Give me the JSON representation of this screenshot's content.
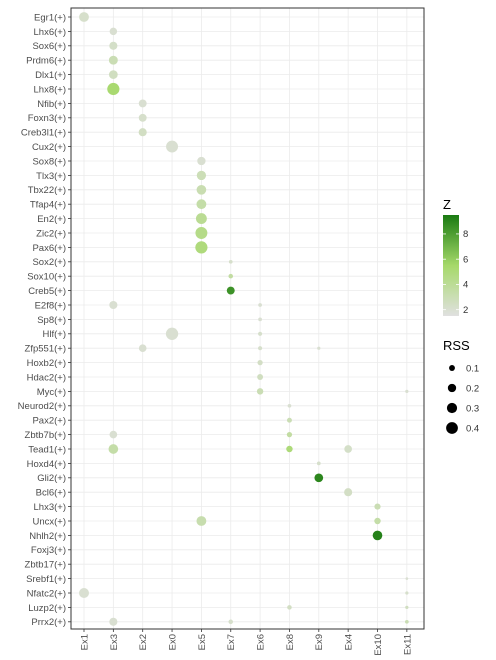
{
  "chart_data": {
    "type": "scatter",
    "xcategories": [
      "Ex1",
      "Ex3",
      "Ex2",
      "Ex0",
      "Ex5",
      "Ex7",
      "Ex6",
      "Ex8",
      "Ex9",
      "Ex4",
      "Ex10",
      "Ex11"
    ],
    "ycategories": [
      "Egr1(+)",
      "Lhx6(+)",
      "Sox6(+)",
      "Prdm6(+)",
      "Dlx1(+)",
      "Lhx8(+)",
      "Nfib(+)",
      "Foxn3(+)",
      "Creb3l1(+)",
      "Cux2(+)",
      "Sox8(+)",
      "Tlx3(+)",
      "Tbx22(+)",
      "Tfap4(+)",
      "En2(+)",
      "Zic2(+)",
      "Pax6(+)",
      "Sox2(+)",
      "Sox10(+)",
      "Creb5(+)",
      "E2f8(+)",
      "Sp8(+)",
      "Hlf(+)",
      "Zfp551(+)",
      "Hoxb2(+)",
      "Hdac2(+)",
      "Myc(+)",
      "Neurod2(+)",
      "Pax2(+)",
      "Zbtb7b(+)",
      "Tead1(+)",
      "Hoxd4(+)",
      "Gli2(+)",
      "Bcl6(+)",
      "Lhx3(+)",
      "Uncx(+)",
      "Nhlh2(+)",
      "Foxj3(+)",
      "Zbtb17(+)",
      "Srebf1(+)",
      "Nfatc2(+)",
      "Luzp2(+)",
      "Prrx2(+)"
    ],
    "points": [
      {
        "x": "Ex1",
        "y": "Egr1(+)",
        "rss": 0.28,
        "z": 2.2
      },
      {
        "x": "Ex3",
        "y": "Lhx6(+)",
        "rss": 0.16,
        "z": 2.0
      },
      {
        "x": "Ex3",
        "y": "Sox6(+)",
        "rss": 0.19,
        "z": 2.3
      },
      {
        "x": "Ex3",
        "y": "Prdm6(+)",
        "rss": 0.23,
        "z": 3.0
      },
      {
        "x": "Ex3",
        "y": "Dlx1(+)",
        "rss": 0.22,
        "z": 2.6
      },
      {
        "x": "Ex3",
        "y": "Lhx8(+)",
        "rss": 0.43,
        "z": 5.3
      },
      {
        "x": "Ex2",
        "y": "Nfib(+)",
        "rss": 0.18,
        "z": 2.0
      },
      {
        "x": "Ex2",
        "y": "Foxn3(+)",
        "rss": 0.18,
        "z": 2.2
      },
      {
        "x": "Ex2",
        "y": "Creb3l1(+)",
        "rss": 0.19,
        "z": 2.5
      },
      {
        "x": "Ex0",
        "y": "Cux2(+)",
        "rss": 0.41,
        "z": 2.0
      },
      {
        "x": "Ex5",
        "y": "Sox8(+)",
        "rss": 0.2,
        "z": 2.0
      },
      {
        "x": "Ex5",
        "y": "Tlx3(+)",
        "rss": 0.25,
        "z": 2.9
      },
      {
        "x": "Ex5",
        "y": "Tbx22(+)",
        "rss": 0.27,
        "z": 3.1
      },
      {
        "x": "Ex5",
        "y": "Tfap4(+)",
        "rss": 0.28,
        "z": 3.4
      },
      {
        "x": "Ex5",
        "y": "En2(+)",
        "rss": 0.34,
        "z": 4.1
      },
      {
        "x": "Ex5",
        "y": "Zic2(+)",
        "rss": 0.41,
        "z": 4.5
      },
      {
        "x": "Ex5",
        "y": "Pax6(+)",
        "rss": 0.43,
        "z": 4.9
      },
      {
        "x": "Ex7",
        "y": "Sox2(+)",
        "rss": 0.04,
        "z": 2.2
      },
      {
        "x": "Ex7",
        "y": "Sox10(+)",
        "rss": 0.06,
        "z": 3.6
      },
      {
        "x": "Ex7",
        "y": "Creb5(+)",
        "rss": 0.18,
        "z": 8.5
      },
      {
        "x": "Ex3",
        "y": "E2f8(+)",
        "rss": 0.19,
        "z": 2.0
      },
      {
        "x": "Ex6",
        "y": "E2f8(+)",
        "rss": 0.04,
        "z": 2.0
      },
      {
        "x": "Ex6",
        "y": "Sp8(+)",
        "rss": 0.04,
        "z": 2.0
      },
      {
        "x": "Ex0",
        "y": "Hlf(+)",
        "rss": 0.44,
        "z": 2.0
      },
      {
        "x": "Ex6",
        "y": "Hlf(+)",
        "rss": 0.05,
        "z": 2.2
      },
      {
        "x": "Ex2",
        "y": "Zfp551(+)",
        "rss": 0.17,
        "z": 2.0
      },
      {
        "x": "Ex6",
        "y": "Zfp551(+)",
        "rss": 0.05,
        "z": 2.2
      },
      {
        "x": "Ex9",
        "y": "Zfp551(+)",
        "rss": 0.03,
        "z": 2.0
      },
      {
        "x": "Ex6",
        "y": "Hoxb2(+)",
        "rss": 0.08,
        "z": 2.4
      },
      {
        "x": "Ex6",
        "y": "Hdac2(+)",
        "rss": 0.1,
        "z": 2.6
      },
      {
        "x": "Ex6",
        "y": "Myc(+)",
        "rss": 0.12,
        "z": 3.0
      },
      {
        "x": "Ex11",
        "y": "Myc(+)",
        "rss": 0.03,
        "z": 2.0
      },
      {
        "x": "Ex8",
        "y": "Neurod2(+)",
        "rss": 0.04,
        "z": 2.0
      },
      {
        "x": "Ex8",
        "y": "Pax2(+)",
        "rss": 0.07,
        "z": 3.0
      },
      {
        "x": "Ex3",
        "y": "Zbtb7b(+)",
        "rss": 0.17,
        "z": 2.0
      },
      {
        "x": "Ex8",
        "y": "Zbtb7b(+)",
        "rss": 0.08,
        "z": 3.6
      },
      {
        "x": "Ex3",
        "y": "Tead1(+)",
        "rss": 0.27,
        "z": 3.4
      },
      {
        "x": "Ex8",
        "y": "Tead1(+)",
        "rss": 0.12,
        "z": 5.0
      },
      {
        "x": "Ex4",
        "y": "Tead1(+)",
        "rss": 0.17,
        "z": 2.3
      },
      {
        "x": "Ex9",
        "y": "Hoxd4(+)",
        "rss": 0.04,
        "z": 2.2
      },
      {
        "x": "Ex9",
        "y": "Gli2(+)",
        "rss": 0.22,
        "z": 9.0
      },
      {
        "x": "Ex4",
        "y": "Bcl6(+)",
        "rss": 0.19,
        "z": 2.4
      },
      {
        "x": "Ex10",
        "y": "Lhx3(+)",
        "rss": 0.11,
        "z": 3.0
      },
      {
        "x": "Ex5",
        "y": "Uncx(+)",
        "rss": 0.28,
        "z": 3.2
      },
      {
        "x": "Ex10",
        "y": "Uncx(+)",
        "rss": 0.12,
        "z": 3.4
      },
      {
        "x": "Ex10",
        "y": "Nhlh2(+)",
        "rss": 0.27,
        "z": 9.2
      },
      {
        "x": "Ex11",
        "y": "Srebf1(+)",
        "rss": 0.02,
        "z": 2.0
      },
      {
        "x": "Ex1",
        "y": "Nfatc2(+)",
        "rss": 0.29,
        "z": 2.0
      },
      {
        "x": "Ex11",
        "y": "Nfatc2(+)",
        "rss": 0.03,
        "z": 2.2
      },
      {
        "x": "Ex8",
        "y": "Luzp2(+)",
        "rss": 0.06,
        "z": 2.5
      },
      {
        "x": "Ex11",
        "y": "Luzp2(+)",
        "rss": 0.03,
        "z": 2.6
      },
      {
        "x": "Ex3",
        "y": "Prrx2(+)",
        "rss": 0.19,
        "z": 2.0
      },
      {
        "x": "Ex7",
        "y": "Prrx2(+)",
        "rss": 0.06,
        "z": 2.2
      },
      {
        "x": "Ex11",
        "y": "Prrx2(+)",
        "rss": 0.04,
        "z": 3.0
      }
    ],
    "legend": {
      "color_title": "Z",
      "color_ticks": [
        "2",
        "4",
        "6",
        "8"
      ],
      "color_tick_values": [
        2,
        4,
        6,
        8
      ],
      "z_range": [
        1.5,
        9.5
      ],
      "color_low": "#e0e0e0",
      "color_mid": "#a6d96a",
      "color_high": "#1a7a12",
      "size_title": "RSS",
      "size_ticks": [
        "0.1",
        "0.2",
        "0.3",
        "0.4"
      ],
      "size_tick_values": [
        0.1,
        0.2,
        0.3,
        0.4
      ],
      "placement": "right"
    },
    "grid": true
  }
}
